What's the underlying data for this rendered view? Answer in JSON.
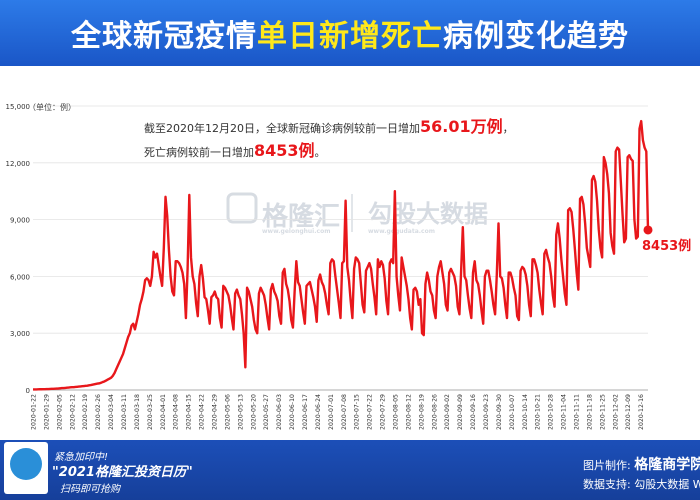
{
  "header": {
    "title_part1": "全球新冠疫情",
    "title_highlight": "单日新增死亡",
    "title_part2": "病例变化趋势"
  },
  "annotation": {
    "line1_prefix": "截至2020年12月20日，全球新冠确诊病例较前一日增加",
    "line1_value": "56.01万例",
    "line1_suffix": "，",
    "line2_prefix": "死亡病例较前一日增加",
    "line2_value": "8453例",
    "line2_suffix": "。"
  },
  "watermark": {
    "brand1": "格隆汇",
    "brand1_url": "www.gelonghui.com",
    "brand2": "勾股大数据",
    "brand2_url": "www.gogudata.com"
  },
  "end_label": "8453例",
  "footer": {
    "promo_line1": "紧急加印中!",
    "promo_line2": "\"2021格隆汇投资日历\"",
    "promo_line3": "扫码即可抢购",
    "credit_maker_label": "图片制作:",
    "credit_maker": "格隆商学院",
    "credit_data_label": "数据支持:",
    "credit_data": "勾股大数据 Wind"
  },
  "colors": {
    "line": "#e8171b",
    "header_bg": "#1f5fcf",
    "highlight": "#ffe81a"
  },
  "chart_data": {
    "type": "line",
    "title": "全球新冠疫情单日新增死亡病例变化趋势",
    "unit_label": "（单位：例）",
    "ylim": [
      0,
      15000
    ],
    "yticks": [
      0,
      3000,
      6000,
      9000,
      12000,
      15000
    ],
    "ytick_labels": [
      "0",
      "3,000",
      "6,000",
      "9,000",
      "12,000",
      "15,000"
    ],
    "x_start": "2020-01-22",
    "x_end": "2020-12-20",
    "xtick_labels": [
      "2020-01-22",
      "2020-01-29",
      "2020-02-05",
      "2020-02-12",
      "2020-02-19",
      "2020-02-26",
      "2020-03-04",
      "2020-03-11",
      "2020-03-18",
      "2020-03-25",
      "2020-04-01",
      "2020-04-08",
      "2020-04-15",
      "2020-04-22",
      "2020-04-29",
      "2020-05-06",
      "2020-05-13",
      "2020-05-20",
      "2020-05-27",
      "2020-06-03",
      "2020-06-10",
      "2020-06-17",
      "2020-06-24",
      "2020-07-01",
      "2020-07-08",
      "2020-07-15",
      "2020-07-22",
      "2020-07-29",
      "2020-08-05",
      "2020-08-12",
      "2020-08-19",
      "2020-08-26",
      "2020-09-02",
      "2020-09-09",
      "2020-09-16",
      "2020-09-23",
      "2020-09-30",
      "2020-10-07",
      "2020-10-14",
      "2020-10-21",
      "2020-10-28",
      "2020-11-04",
      "2020-11-11",
      "2020-11-18",
      "2020-11-25",
      "2020-12-02",
      "2020-12-09",
      "2020-12-16"
    ],
    "grid": "horizontal",
    "series": [
      {
        "values": [
          30,
          30,
          30,
          35,
          40,
          40,
          45,
          45,
          50,
          50,
          55,
          60,
          65,
          70,
          75,
          80,
          90,
          100,
          100,
          110,
          120,
          130,
          140,
          150,
          150,
          160,
          170,
          180,
          190,
          200,
          210,
          220,
          230,
          250,
          260,
          280,
          300,
          320,
          340,
          350,
          380,
          420,
          450,
          500,
          550,
          600,
          650,
          750,
          900,
          1100,
          1300,
          1500,
          1700,
          1900,
          2200,
          2500,
          2800,
          3000,
          3400,
          3500,
          3200,
          3600,
          4000,
          4500,
          4800,
          5200,
          5800,
          5900,
          5800,
          5500,
          6000,
          7300,
          7000,
          7200,
          6600,
          6000,
          5500,
          7500,
          10200,
          9200,
          7400,
          6000,
          5200,
          5000,
          6800,
          6800,
          6700,
          6500,
          6200,
          5600,
          3800,
          6400,
          10300,
          7000,
          6000,
          5600,
          4600,
          3900,
          6000,
          6600,
          5900,
          4900,
          4800,
          4200,
          3500,
          4900,
          5000,
          5200,
          4900,
          4800,
          3800,
          3300,
          5500,
          5400,
          5200,
          5000,
          4500,
          3800,
          3200,
          5100,
          5300,
          5000,
          4800,
          4000,
          3000,
          1200,
          5400,
          5200,
          4800,
          4400,
          3700,
          3200,
          3000,
          5100,
          5400,
          5200,
          5000,
          4500,
          3800,
          3200,
          5300,
          5600,
          5200,
          5000,
          4700,
          3900,
          3500,
          6200,
          6400,
          5600,
          5300,
          4700,
          3700,
          3300,
          5200,
          6800,
          5700,
          5500,
          4800,
          4100,
          3500,
          5500,
          5600,
          5700,
          5300,
          4900,
          4400,
          3600,
          5800,
          6100,
          5700,
          5500,
          5100,
          4500,
          4000,
          6700,
          6900,
          6800,
          6000,
          5300,
          4600,
          3800,
          6700,
          6800,
          10000,
          6500,
          5800,
          4700,
          3800,
          6400,
          7000,
          6900,
          6700,
          5600,
          4500,
          4100,
          6300,
          6500,
          6700,
          6400,
          5600,
          4900,
          4000,
          6900,
          6500,
          6800,
          6600,
          5900,
          4700,
          4000,
          6700,
          6900,
          6700,
          10500,
          6000,
          5000,
          4200,
          7000,
          6500,
          6000,
          5500,
          4800,
          3800,
          3200,
          5300,
          5400,
          5200,
          4500,
          4800,
          3000,
          2900,
          5600,
          6200,
          5800,
          5200,
          5000,
          4200,
          3800,
          6000,
          6500,
          6800,
          6200,
          5600,
          4500,
          4200,
          6200,
          6400,
          6200,
          6000,
          5500,
          4400,
          4000,
          6300,
          8600,
          6000,
          5800,
          5000,
          4300,
          3800,
          6200,
          6800,
          5800,
          5600,
          5000,
          4200,
          3500,
          6000,
          6300,
          6300,
          5800,
          5200,
          4500,
          4000,
          6100,
          8800,
          6000,
          5900,
          5400,
          4500,
          3800,
          6200,
          6200,
          5900,
          5400,
          5000,
          3900,
          3700,
          6300,
          6500,
          6400,
          6100,
          5500,
          4500,
          3900,
          6900,
          6900,
          6600,
          6200,
          5300,
          4600,
          4000,
          7200,
          7400,
          7000,
          6700,
          6000,
          5000,
          4400,
          8200,
          8800,
          8000,
          6900,
          6000,
          5100,
          4500,
          9500,
          9600,
          9400,
          8500,
          7400,
          6200,
          5300,
          10100,
          10200,
          9800,
          8800,
          7500,
          7000,
          6500,
          11100,
          11300,
          11000,
          10000,
          8500,
          7500,
          7000,
          12300,
          12000,
          11400,
          10400,
          8300,
          7600,
          7200,
          12600,
          12800,
          12700,
          11000,
          9300,
          7800,
          8000,
          12300,
          12400,
          12200,
          12100,
          9000,
          8000,
          8100,
          13800,
          14200,
          13200,
          12800,
          12600,
          8453
        ]
      }
    ]
  }
}
